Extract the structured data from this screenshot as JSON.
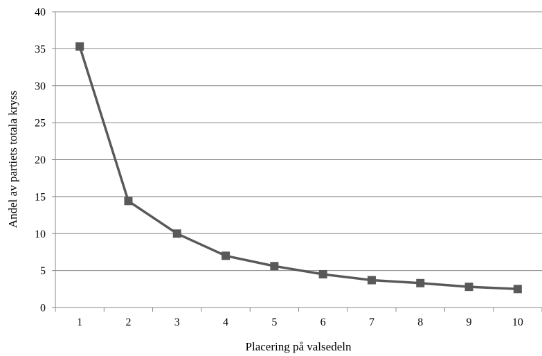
{
  "chart_data": {
    "type": "line",
    "title": "",
    "xlabel": "Placering på valsedeln",
    "ylabel": "Andel av partiets totala kryss",
    "categories": [
      "1",
      "2",
      "3",
      "4",
      "5",
      "6",
      "7",
      "8",
      "9",
      "10"
    ],
    "series": [
      {
        "values": [
          35.3,
          14.4,
          10.0,
          7.0,
          5.6,
          4.5,
          3.7,
          3.3,
          2.8,
          2.5
        ]
      }
    ],
    "ylim": [
      0,
      40
    ],
    "yticks": [
      "0",
      "5",
      "10",
      "15",
      "20",
      "25",
      "30",
      "35",
      "40"
    ],
    "grid": "horizontal",
    "legend": "none",
    "colors": {
      "line": "#595959",
      "marker": "#595959",
      "grid": "#888888",
      "axis": "#888888"
    },
    "marker": "square-icon"
  }
}
